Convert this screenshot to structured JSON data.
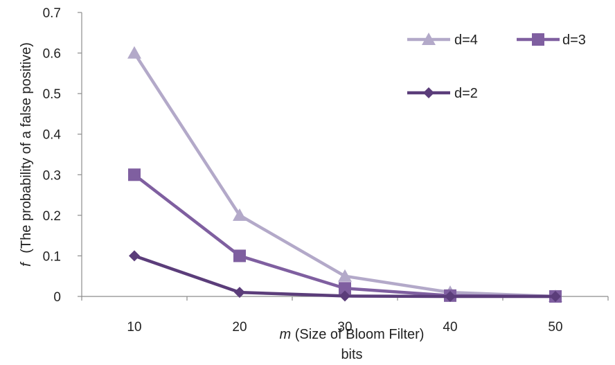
{
  "chart_data": {
    "type": "line",
    "categories": [
      "10",
      "20",
      "30",
      "40",
      "50"
    ],
    "series": [
      {
        "name": "d=4",
        "color": "#b3a9c9",
        "marker": "triangle",
        "values": [
          0.6,
          0.2,
          0.05,
          0.01,
          0
        ]
      },
      {
        "name": "d=3",
        "color": "#7f5fa0",
        "marker": "square",
        "values": [
          0.3,
          0.1,
          0.02,
          0.002,
          0
        ]
      },
      {
        "name": "d=2",
        "color": "#5b3d7a",
        "marker": "diamond",
        "values": [
          0.1,
          0.01,
          0.001,
          0,
          0
        ]
      }
    ],
    "ylim": [
      0,
      0.7
    ],
    "yticks": [
      "0",
      "0.1",
      "0.2",
      "0.3",
      "0.4",
      "0.5",
      "0.6",
      "0.7"
    ],
    "xlabel": {
      "italic": "m",
      "main": " (Size of Bloom Filter)",
      "second_line": "bits"
    },
    "ylabel": {
      "italic": "f",
      "main": "(The probability of a false positive)"
    },
    "legend_placement": "top-right",
    "grid": false
  }
}
